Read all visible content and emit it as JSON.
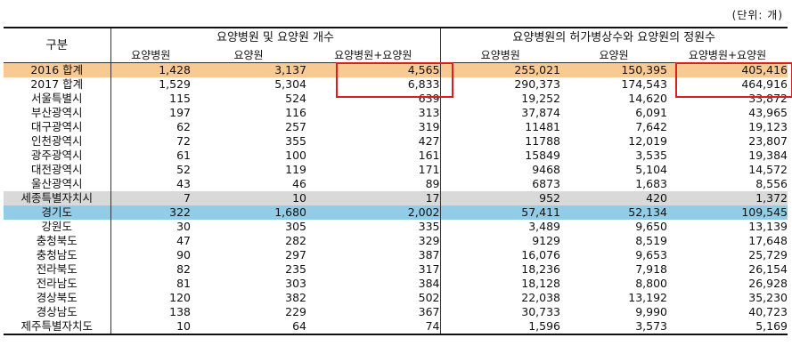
{
  "unit_label": "(단위: 개)",
  "header": {
    "gubun": "구분",
    "group1": "요양병원 및 요양원 개수",
    "group2": "요양병원의 허가병상수와 요양원의 정원수",
    "sub1": [
      "요양병원",
      "요양원",
      "요양병원+요양원"
    ],
    "sub2": [
      "요양병원",
      "요양원",
      "요양병원+요양원"
    ]
  },
  "rows": [
    {
      "name": "2016 합계",
      "v": [
        "1,428",
        "3,137",
        "4,565",
        "255,021",
        "150,395",
        "405,416"
      ]
    },
    {
      "name": "2017 합계",
      "v": [
        "1,529",
        "5,304",
        "6,833",
        "290,373",
        "174,543",
        "464,916"
      ]
    },
    {
      "name": "서울특별시",
      "v": [
        "115",
        "524",
        "639",
        "19,252",
        "14,620",
        "33,872"
      ]
    },
    {
      "name": "부산광역시",
      "v": [
        "197",
        "116",
        "313",
        "37,874",
        "6,091",
        "43,965"
      ]
    },
    {
      "name": "대구광역시",
      "v": [
        "62",
        "257",
        "319",
        "11481",
        "7,642",
        "19,123"
      ]
    },
    {
      "name": "인천광역시",
      "v": [
        "72",
        "355",
        "427",
        "11788",
        "12,019",
        "23,807"
      ]
    },
    {
      "name": "광주광역시",
      "v": [
        "61",
        "100",
        "161",
        "15849",
        "3,535",
        "19,384"
      ]
    },
    {
      "name": "대전광역시",
      "v": [
        "52",
        "119",
        "171",
        "9468",
        "5,104",
        "14,572"
      ]
    },
    {
      "name": "울산광역시",
      "v": [
        "43",
        "46",
        "89",
        "6873",
        "1,683",
        "8,556"
      ]
    },
    {
      "name": "세종특별자치시",
      "v": [
        "7",
        "10",
        "17",
        "952",
        "420",
        "1,372"
      ]
    },
    {
      "name": "경기도",
      "v": [
        "322",
        "1,680",
        "2,002",
        "57,411",
        "52,134",
        "109,545"
      ]
    },
    {
      "name": "강원도",
      "v": [
        "30",
        "305",
        "335",
        "3,489",
        "9,650",
        "13,139"
      ]
    },
    {
      "name": "충청북도",
      "v": [
        "47",
        "282",
        "329",
        "9129",
        "8,519",
        "17,648"
      ]
    },
    {
      "name": "충청남도",
      "v": [
        "90",
        "297",
        "387",
        "16,076",
        "9,653",
        "25,729"
      ]
    },
    {
      "name": "전라북도",
      "v": [
        "82",
        "235",
        "317",
        "18,236",
        "7,918",
        "26,154"
      ]
    },
    {
      "name": "전라남도",
      "v": [
        "81",
        "303",
        "384",
        "18,128",
        "8,800",
        "26,928"
      ]
    },
    {
      "name": "경상북도",
      "v": [
        "120",
        "382",
        "502",
        "22,038",
        "13,192",
        "35,230"
      ]
    },
    {
      "name": "경상남도",
      "v": [
        "138",
        "229",
        "367",
        "30,733",
        "9,990",
        "40,723"
      ]
    },
    {
      "name": "제주특별자치도",
      "v": [
        "10",
        "64",
        "74",
        "1,596",
        "3,573",
        "5,169"
      ]
    }
  ],
  "row_highlight_colors": {
    "orange": "#f9c992",
    "gray": "#d9d9d9",
    "blue": "#92cde7"
  },
  "annotation_color": "#d72020"
}
